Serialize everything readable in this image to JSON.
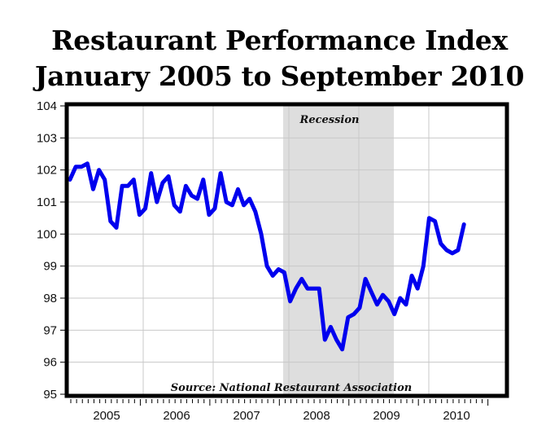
{
  "title_line1": "Restaurant Performance Index",
  "title_line2": "January 2005 to September 2010",
  "recession_label": "Recession",
  "source_label": "Source: National Restaurant Association",
  "colors": {
    "line": "#0000ee",
    "recession_shade": "#dedede",
    "grid": "#c8c8c8",
    "frame": "#000000"
  },
  "chart_data": {
    "type": "line",
    "title": "Restaurant Performance Index January 2005 to September 2010",
    "xlabel": "",
    "ylabel": "",
    "ylim": [
      95,
      104
    ],
    "yticks": [
      95,
      96,
      97,
      98,
      99,
      100,
      101,
      102,
      103,
      104
    ],
    "xticks": [
      "2005",
      "2006",
      "2007",
      "2008",
      "2009",
      "2010"
    ],
    "grid": true,
    "legend": null,
    "annotations": [
      {
        "text": "Recession",
        "type": "shaded_region",
        "start": "2007-12",
        "end": "2009-06"
      },
      {
        "text": "Source: National Restaurant Association",
        "position": "bottom-center"
      }
    ],
    "x_start": "2005-01",
    "x_end": "2010-09",
    "frequency": "monthly",
    "series": [
      {
        "name": "Restaurant Performance Index",
        "values": [
          101.7,
          102.1,
          102.1,
          102.2,
          101.4,
          102.0,
          101.7,
          100.4,
          100.2,
          101.5,
          101.5,
          101.7,
          100.6,
          100.8,
          101.9,
          101.0,
          101.6,
          101.8,
          100.9,
          100.7,
          101.5,
          101.2,
          101.1,
          101.7,
          100.6,
          100.8,
          101.9,
          101.0,
          100.9,
          101.4,
          100.9,
          101.1,
          100.7,
          100.0,
          99.0,
          98.7,
          98.9,
          98.8,
          97.9,
          98.3,
          98.6,
          98.3,
          98.3,
          98.3,
          96.7,
          97.1,
          96.7,
          96.4,
          97.4,
          97.5,
          97.7,
          98.6,
          98.2,
          97.8,
          98.1,
          97.9,
          97.5,
          98.0,
          97.8,
          98.7,
          98.3,
          99.0,
          100.5,
          100.4,
          99.7,
          99.5,
          99.4,
          99.5,
          100.3
        ]
      }
    ]
  }
}
